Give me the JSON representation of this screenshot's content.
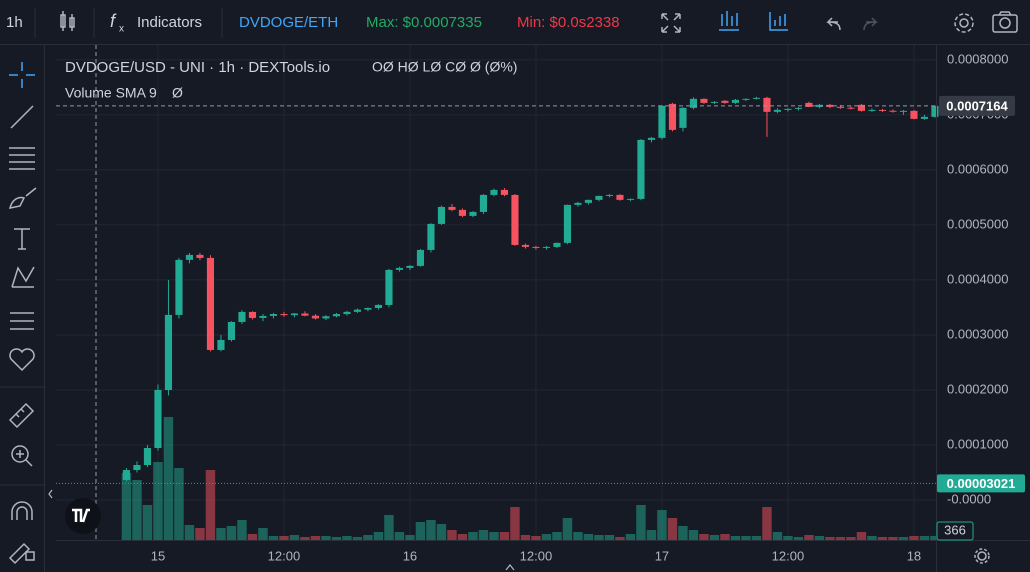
{
  "toolbar": {
    "interval": "1h",
    "indicators": "Indicators",
    "pair": "DVDOGE/ETH",
    "max": "Max: $0.0007335",
    "min": "Min: $0.0s2338"
  },
  "legend": {
    "title": "DVDOGE/USD - UNI · 1h · DEXTools.io",
    "ohlc": "OØ HØ LØ CØ Ø (Ø%)",
    "volume": "Volume SMA 9",
    "volume_value": "Ø"
  },
  "chart_data": {
    "type": "candlestick",
    "x": [
      -3,
      -2,
      -1,
      0,
      1,
      2,
      3,
      4,
      5,
      6,
      7,
      8,
      9,
      10,
      11,
      12,
      13,
      14,
      15,
      16,
      17,
      18,
      19,
      20,
      21,
      22,
      23,
      24,
      25,
      26,
      27,
      28,
      29,
      30,
      31,
      32,
      33,
      34,
      35,
      36,
      37,
      38,
      39,
      40,
      41,
      42,
      43,
      44,
      45,
      46,
      47,
      48,
      49,
      50,
      51,
      52,
      53,
      54,
      55,
      56,
      57,
      58,
      59,
      60,
      61,
      62,
      63,
      64,
      65,
      66,
      67,
      68,
      69,
      70,
      71,
      72,
      73,
      74
    ],
    "open": [
      3.64e-05,
      5.45e-05,
      6.36e-05,
      9.45e-05,
      0.0002,
      0.0003364,
      0.0004364,
      0.0004455,
      0.00044,
      0.0002727,
      0.0002909,
      0.0003236,
      0.0003418,
      0.0003309,
      0.0003345,
      0.000338,
      0.000336,
      0.000339,
      0.000335,
      0.00033,
      0.000334,
      0.000338,
      0.000342,
      0.000346,
      0.000349,
      0.0003545,
      0.0004182,
      0.0004218,
      0.0004255,
      0.0004545,
      0.0005018,
      0.0005327,
      0.0005273,
      0.0005164,
      0.0005236,
      0.0005545,
      0.0005636,
      0.0005545,
      0.0004636,
      0.00046,
      0.0004582,
      0.00046,
      0.0004673,
      0.0005364,
      0.00054,
      0.0005455,
      0.0005527,
      0.0005545,
      0.0005455,
      0.0005473,
      0.0006545,
      0.0006582,
      0.00072,
      0.0006764,
      0.0007127,
      0.0007291,
      0.0007218,
      0.0007255,
      0.0007218,
      0.0007273,
      0.0007291,
      0.0007309,
      0.0007055,
      0.0007091,
      0.0007109,
      0.0007218,
      0.0007145,
      0.0007182,
      0.0007145,
      0.000713,
      0.0007182,
      0.0007073,
      0.000709,
      0.0007075,
      0.000706,
      0.0007073,
      0.0006927,
      0.0006964
    ],
    "high": [
      5.8e-05,
      7e-05,
      0.0001,
      0.00021,
      0.0004,
      0.00044,
      0.000449,
      0.000449,
      0.000445,
      0.0003,
      0.000325,
      0.000345,
      0.000343,
      0.000338,
      0.00034,
      0.000342,
      0.00034,
      0.000343,
      0.000338,
      0.000336,
      0.00034,
      0.000344,
      0.000348,
      0.00035,
      0.000356,
      0.00042,
      0.000424,
      0.000427,
      0.000456,
      0.000503,
      0.000535,
      0.000538,
      0.00053,
      0.000525,
      0.000556,
      0.000566,
      0.000567,
      0.000556,
      0.000466,
      0.000462,
      0.000462,
      0.000468,
      0.000537,
      0.000542,
      0.000546,
      0.000553,
      0.000556,
      0.000556,
      0.000548,
      0.000656,
      0.00066,
      0.000718,
      0.000722,
      0.000714,
      0.000732,
      0.00073,
      0.000725,
      0.000727,
      0.000729,
      0.00073,
      0.000733,
      0.000733,
      0.000712,
      0.000712,
      0.000714,
      0.000724,
      0.00072,
      0.00072,
      0.000718,
      0.000716,
      0.00072,
      0.000712,
      0.000711,
      0.00071,
      0.000709,
      0.000709,
      0.0007,
      0.000717
    ],
    "low": [
      3.4e-05,
      5e-05,
      6e-05,
      9e-05,
      0.00019,
      0.00033,
      0.00043,
      0.000436,
      0.00027,
      0.00027,
      0.000288,
      0.00032,
      0.000328,
      0.000325,
      0.00033,
      0.000333,
      0.000332,
      0.000334,
      0.000328,
      0.000327,
      0.000332,
      0.000335,
      0.00034,
      0.000343,
      0.000346,
      0.00035,
      0.000415,
      0.000418,
      0.000424,
      0.00045,
      0.0005,
      0.000525,
      0.000514,
      0.000514,
      0.00052,
      0.000552,
      0.000552,
      0.000462,
      0.000457,
      0.000455,
      0.000455,
      0.000458,
      0.000465,
      0.000533,
      0.000537,
      0.000543,
      0.00055,
      0.000544,
      0.000543,
      0.000545,
      0.00065,
      0.000655,
      0.00067,
      0.00067,
      0.00071,
      0.00072,
      0.00072,
      0.00072,
      0.00072,
      0.000725,
      0.000728,
      0.00066,
      0.000703,
      0.000706,
      0.000708,
      0.000714,
      0.000712,
      0.000712,
      0.000711,
      0.00071,
      0.000706,
      0.000705,
      0.000705,
      0.000704,
      0.0007,
      0.000692,
      0.000691,
      0.000695
    ],
    "close": [
      5.45e-05,
      6.36e-05,
      9.45e-05,
      0.0002,
      0.0003364,
      0.0004364,
      0.0004455,
      0.00044,
      0.0002727,
      0.0002909,
      0.0003236,
      0.0003418,
      0.0003309,
      0.0003345,
      0.000338,
      0.000336,
      0.000339,
      0.000335,
      0.00033,
      0.000334,
      0.000338,
      0.000342,
      0.000346,
      0.000349,
      0.0003545,
      0.0004182,
      0.0004218,
      0.0004255,
      0.0004545,
      0.0005018,
      0.0005327,
      0.0005273,
      0.0005164,
      0.0005236,
      0.0005545,
      0.0005636,
      0.0005545,
      0.0004636,
      0.00046,
      0.0004582,
      0.00046,
      0.0004673,
      0.0005364,
      0.00054,
      0.0005455,
      0.0005527,
      0.0005545,
      0.0005455,
      0.0005473,
      0.0006545,
      0.0006582,
      0.0007164,
      0.0006727,
      0.0007127,
      0.0007291,
      0.0007218,
      0.0007236,
      0.0007218,
      0.0007273,
      0.0007291,
      0.0007309,
      0.0007055,
      0.0007091,
      0.0007109,
      0.0007127,
      0.0007145,
      0.0007182,
      0.0007145,
      0.000713,
      0.0007118,
      0.0007073,
      0.000709,
      0.0007075,
      0.000706,
      0.0007073,
      0.0006927,
      0.0006964,
      0.0007164
    ],
    "volume": [
      6030,
      5400,
      3150,
      7020,
      11070,
      6480,
      1350,
      1080,
      6300,
      1080,
      1260,
      1800,
      540,
      1080,
      360,
      360,
      450,
      270,
      360,
      360,
      270,
      360,
      270,
      450,
      720,
      2250,
      720,
      450,
      1620,
      1800,
      1440,
      900,
      540,
      720,
      900,
      720,
      720,
      2970,
      450,
      360,
      540,
      720,
      1980,
      720,
      540,
      450,
      450,
      270,
      540,
      3150,
      900,
      2700,
      1980,
      1260,
      900,
      540,
      450,
      540,
      360,
      360,
      360,
      2970,
      720,
      360,
      270,
      450,
      360,
      270,
      270,
      270,
      720,
      360,
      270,
      270,
      270,
      360,
      360,
      366
    ],
    "up_color": "#22ab94",
    "down_color": "#f7525f",
    "xlim": [
      -9.71,
      74.1
    ],
    "xticks": [
      {
        "value": 0,
        "label": "15"
      },
      {
        "value": 12,
        "label": "12:00"
      },
      {
        "value": 24,
        "label": "16"
      },
      {
        "value": 36,
        "label": "12:00"
      },
      {
        "value": 48,
        "label": "17"
      },
      {
        "value": 60,
        "label": "12:00"
      },
      {
        "value": 72,
        "label": "18"
      }
    ],
    "ylim": [
      -7.27e-05,
      0.000827
    ],
    "yticks": [
      {
        "value": 0.0008,
        "label": "0.0008000"
      },
      {
        "value": 0.0007,
        "label": "0.0007000"
      },
      {
        "value": 0.0006,
        "label": "0.0006000"
      },
      {
        "value": 0.0005,
        "label": "0.0005000"
      },
      {
        "value": 0.0004,
        "label": "0.0004000"
      },
      {
        "value": 0.0003,
        "label": "0.0003000"
      },
      {
        "value": 0.0002,
        "label": "0.0002000"
      },
      {
        "value": 0.0001,
        "label": "0.0001000"
      },
      {
        "value": 0,
        "label": "-0.0000"
      }
    ],
    "grid": true,
    "crosshair": {
      "value": 0.0007164,
      "label": "0.0007164"
    },
    "price_line": {
      "value": 3.021e-05,
      "label": "0.00003021"
    }
  }
}
